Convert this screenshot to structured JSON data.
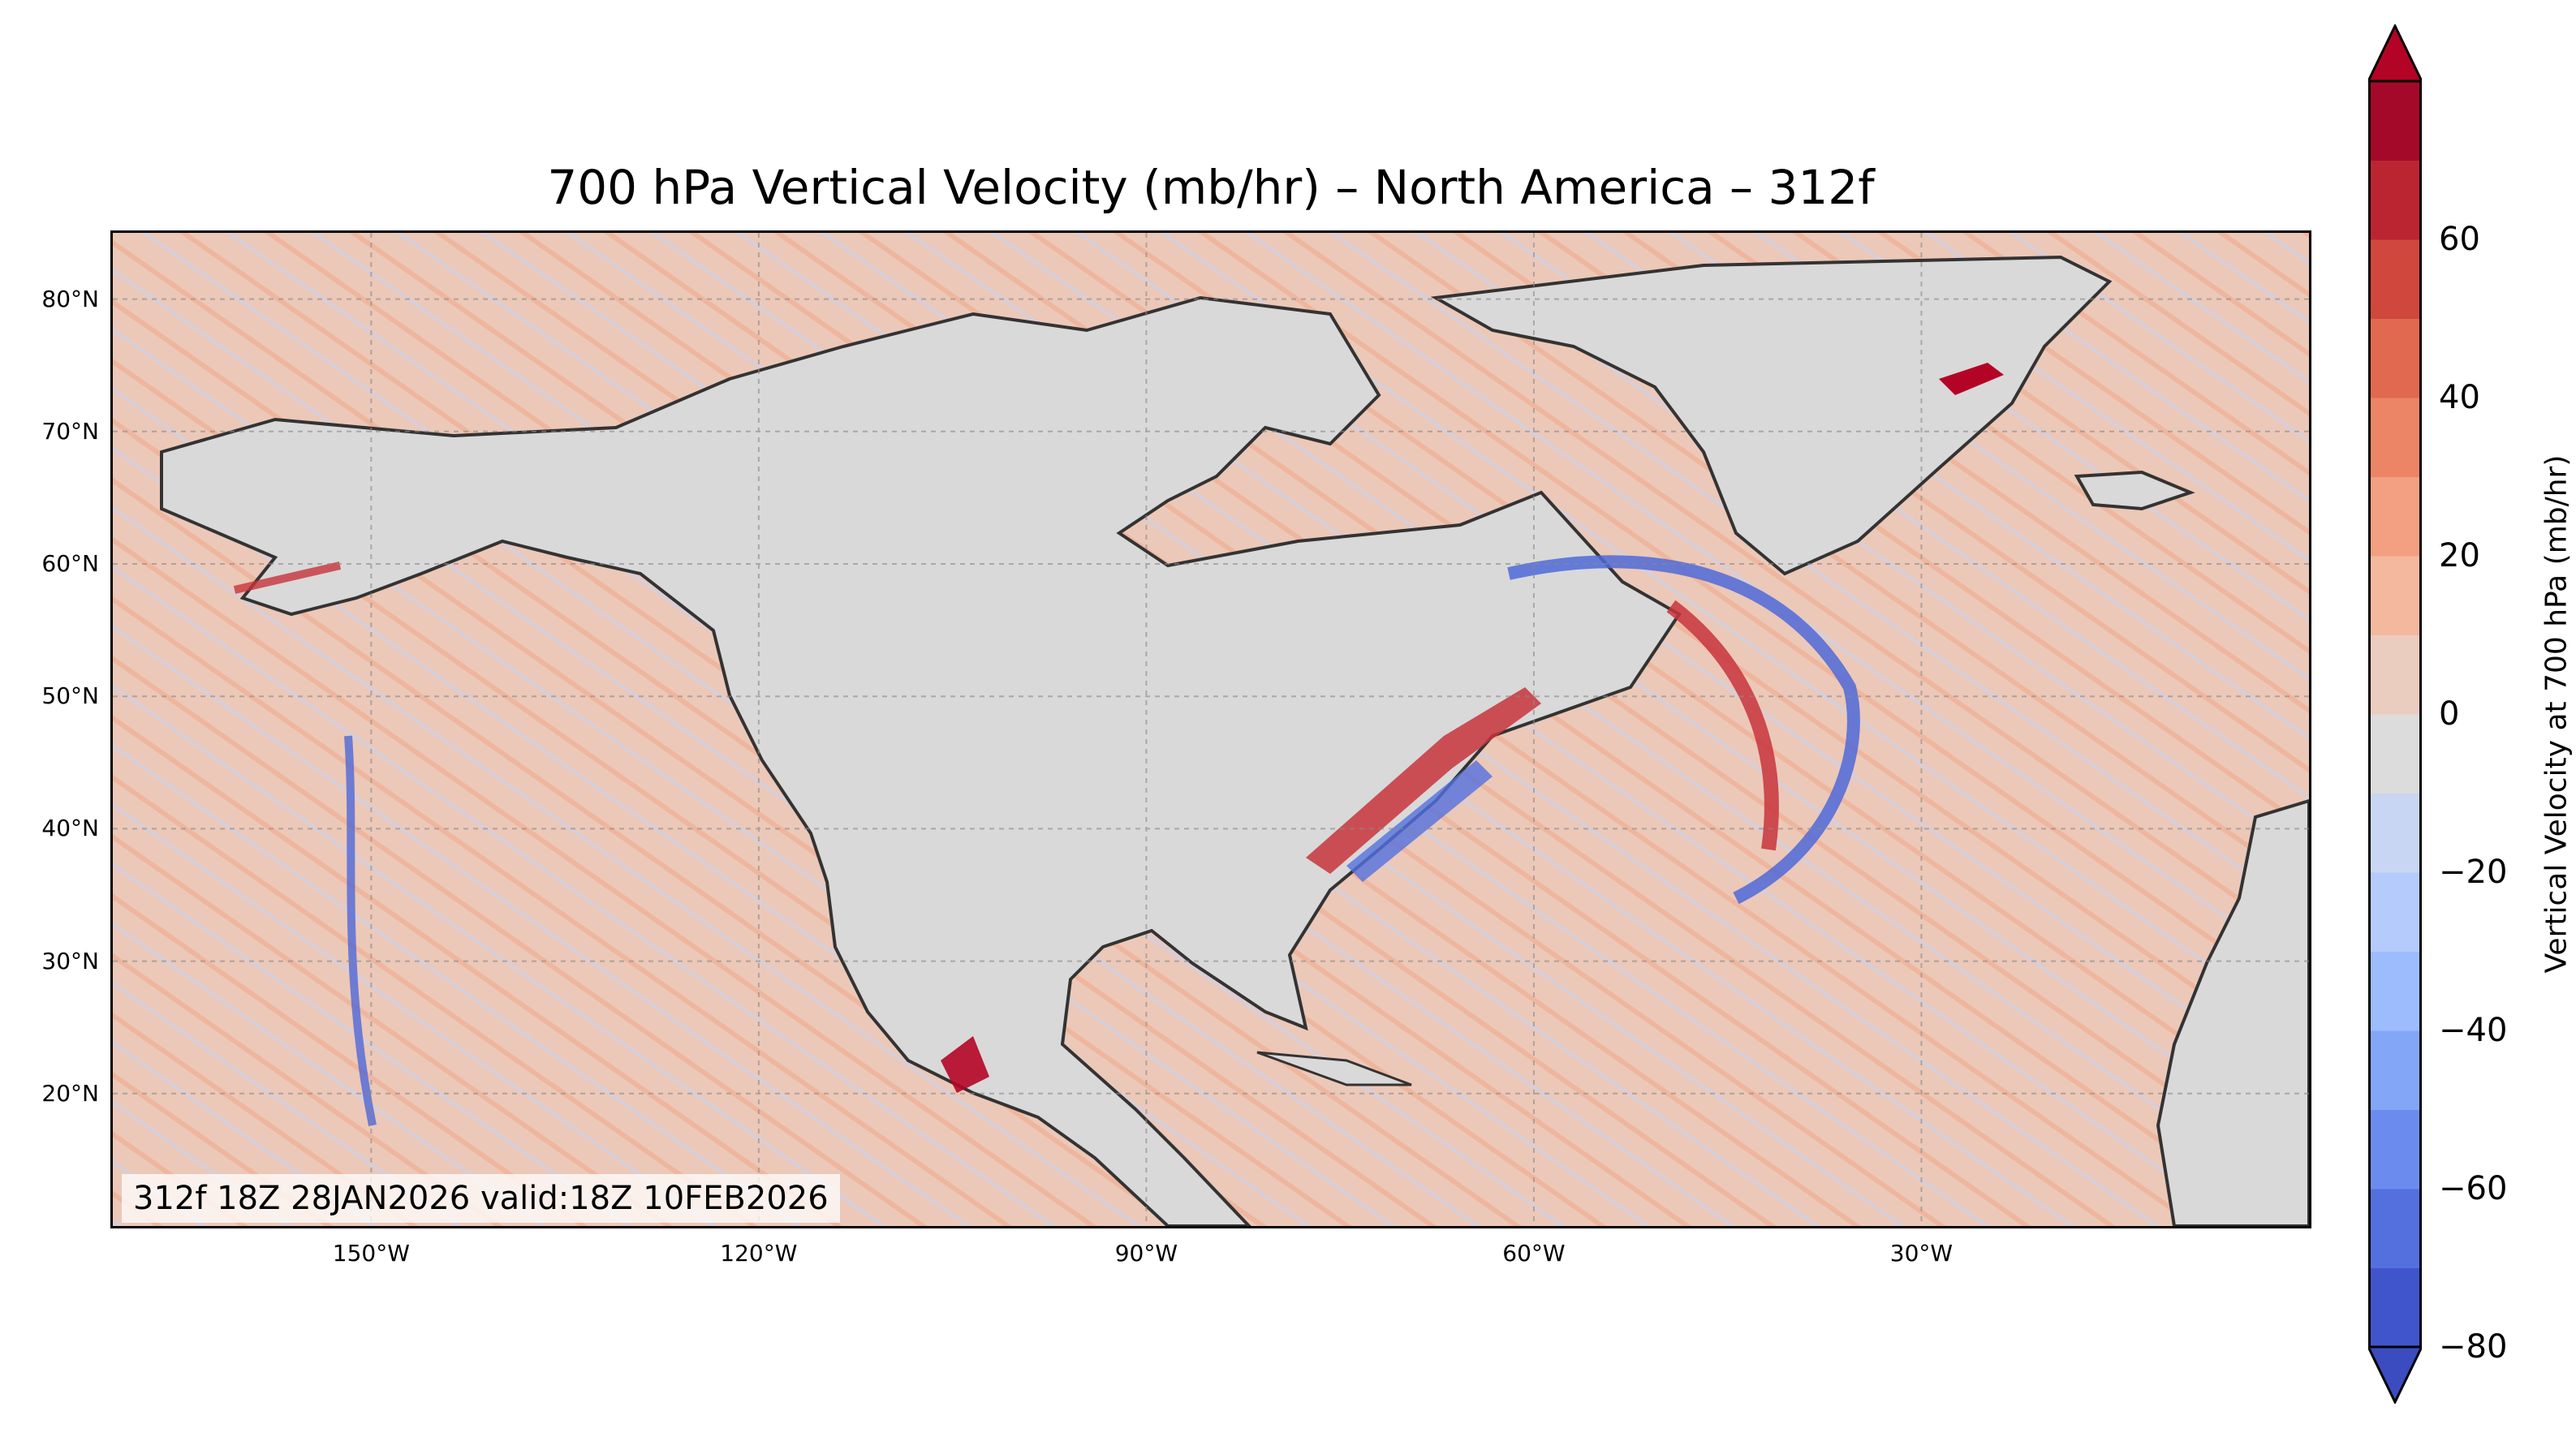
{
  "title": "700 hPa Vertical Velocity (mb/hr) – North America – 312f",
  "valid_text": "312f 18Z 28JAN2026 valid:18Z 10FEB2026",
  "lat_labels": [
    "80°N",
    "70°N",
    "60°N",
    "50°N",
    "40°N",
    "30°N",
    "20°N"
  ],
  "lon_labels": [
    "150°W",
    "120°W",
    "90°W",
    "60°W",
    "30°W"
  ],
  "colorbar": {
    "label": "Vertical Velocity at 700 hPa (mb/hr)",
    "tick_labels": [
      "60",
      "40",
      "20",
      "0",
      "−20",
      "−40",
      "−60",
      "−80"
    ],
    "levels": [
      -80,
      -70,
      -60,
      -50,
      -40,
      -30,
      -20,
      -10,
      0,
      10,
      20,
      30,
      40,
      50,
      60,
      70
    ],
    "colors_low_to_high": [
      "#4055cc",
      "#5470de",
      "#6b8cee",
      "#84a6f7",
      "#9dbcfd",
      "#b4cbfb",
      "#c9d6f3",
      "#dcdcdc",
      "#ebcdc0",
      "#f4b89f",
      "#f2a081",
      "#ec8466",
      "#e0694f",
      "#d0473e",
      "#bb2532",
      "#a5092a"
    ],
    "under_color": "#3b4cc0",
    "over_color": "#b40426"
  },
  "map": {
    "extent_lon": [
      -170,
      0
    ],
    "extent_lat": [
      10,
      85
    ],
    "gridline_lons": [
      -150,
      -120,
      -90,
      -60,
      -30
    ],
    "gridline_lats": [
      80,
      70,
      60,
      50,
      40,
      30,
      20
    ]
  }
}
